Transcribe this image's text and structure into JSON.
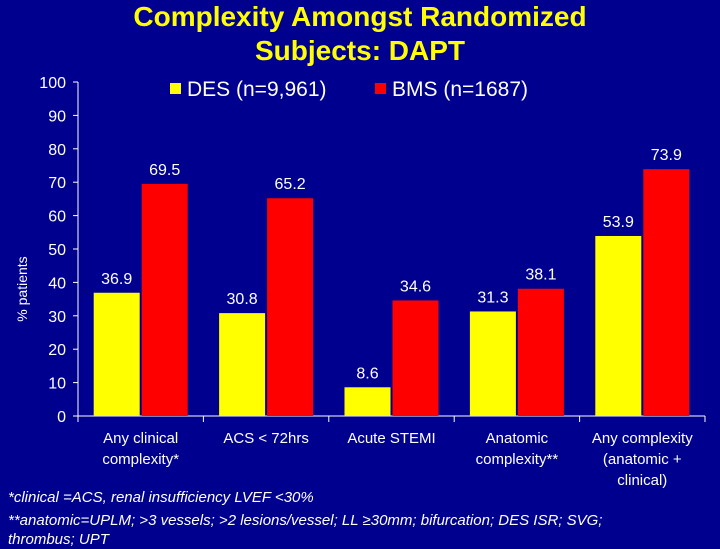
{
  "chart_data": {
    "type": "bar",
    "title_lines": [
      "Complexity Amongst Randomized",
      "Subjects: DAPT"
    ],
    "ylabel": "% patients",
    "xlabel": "",
    "ylim": [
      0,
      100
    ],
    "yticks": [
      "0",
      "10",
      "20",
      "30",
      "40",
      "50",
      "60",
      "70",
      "80",
      "90",
      "100"
    ],
    "grid": false,
    "legend_position": "top",
    "categories": [
      [
        "Any clinical",
        "complexity*"
      ],
      [
        "ACS < 72hrs"
      ],
      [
        "Acute STEMI"
      ],
      [
        "Anatomic",
        "complexity**"
      ],
      [
        "Any complexity",
        "(anatomic +",
        "clinical)"
      ]
    ],
    "series": [
      {
        "name": "DES (n=9,961)",
        "color": "#ffff00",
        "values": [
          36.9,
          30.8,
          8.6,
          31.3,
          53.9
        ],
        "labels": [
          "36.9",
          "30.8",
          "8.6",
          "31.3",
          "53.9"
        ]
      },
      {
        "name": "BMS (n=1687)",
        "color": "#ff0000",
        "values": [
          69.5,
          65.2,
          34.6,
          38.1,
          73.9
        ],
        "labels": [
          "69.5",
          "65.2",
          "34.6",
          "38.1",
          "73.9"
        ]
      }
    ]
  },
  "footnotes": [
    "*clinical =ACS, renal insufficiency LVEF <30%",
    "**anatomic=UPLM; >3 vessels; >2 lesions/vessel; LL ≥30mm; bifurcation; DES ISR; SVG;",
    "thrombus; UPT"
  ]
}
